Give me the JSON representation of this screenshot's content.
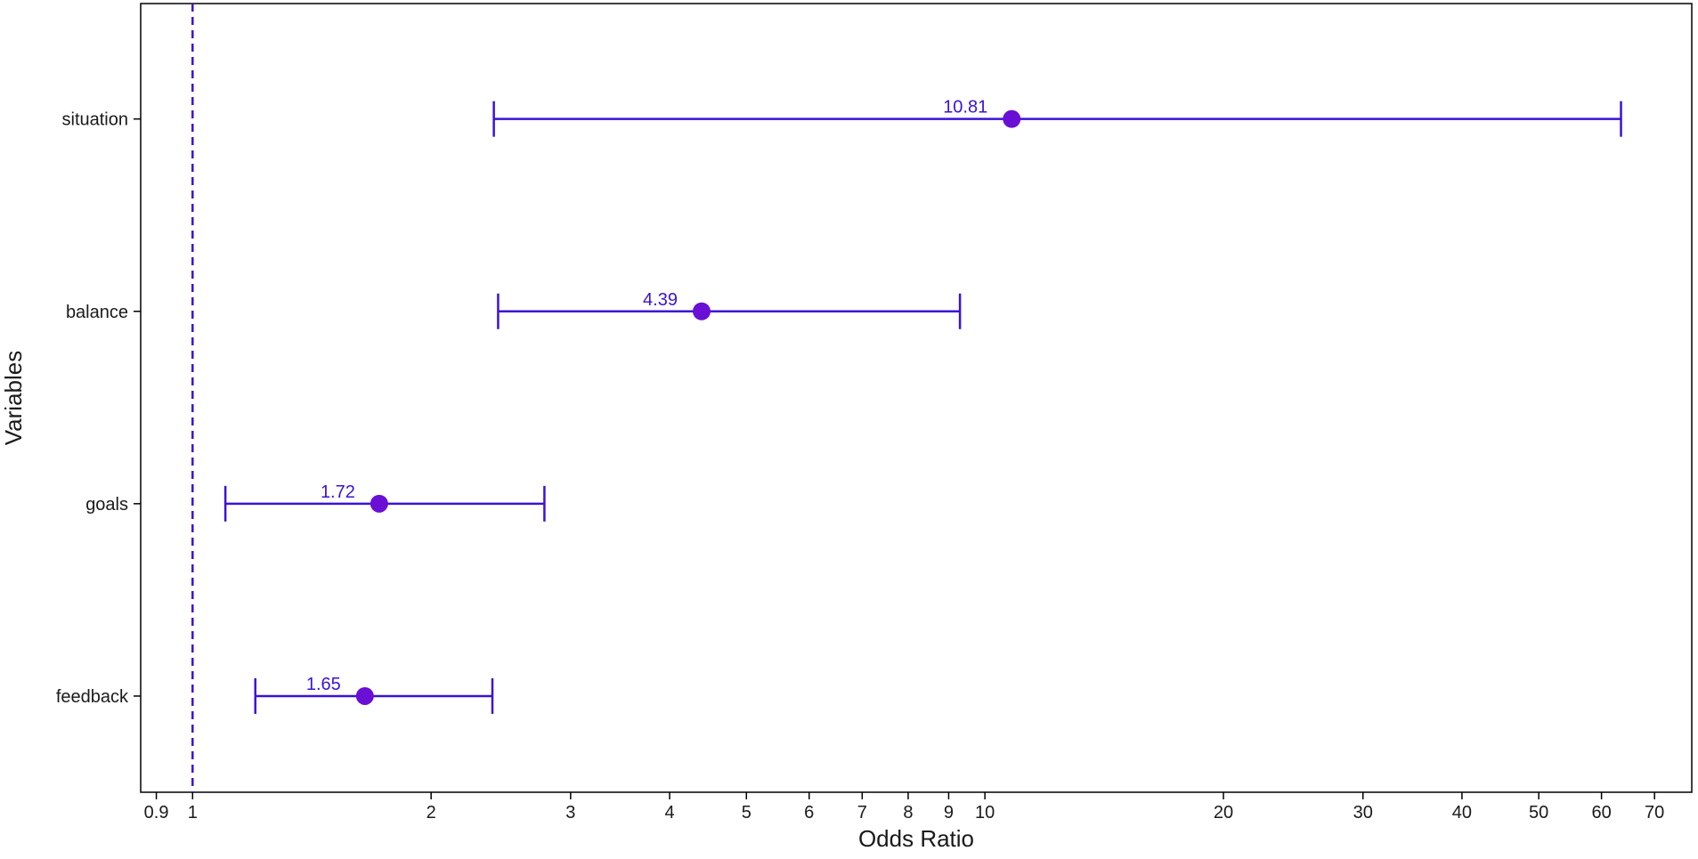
{
  "chart_data": {
    "type": "forest",
    "xlabel": "Odds Ratio",
    "ylabel": "Variables",
    "xscale": "log",
    "xlim": [
      0.86,
      78
    ],
    "x_ticks": [
      0.9,
      1,
      2,
      3,
      4,
      5,
      6,
      7,
      8,
      9,
      10,
      20,
      30,
      40,
      50,
      60,
      70
    ],
    "x_tick_labels": [
      "0.9",
      "1",
      "2",
      "3",
      "4",
      "5",
      "6",
      "7",
      "8",
      "9",
      "10",
      "20",
      "30",
      "40",
      "50",
      "60",
      "70"
    ],
    "reference_line": 1,
    "grid": false,
    "legend": "none",
    "color": "#3b12d6",
    "point_color": "#6a0fd6",
    "rows": [
      {
        "variable": "situation",
        "or": 10.81,
        "lower": 2.4,
        "upper": 63.5,
        "label": "10.81"
      },
      {
        "variable": "balance",
        "or": 4.39,
        "lower": 2.43,
        "upper": 9.3,
        "label": "4.39"
      },
      {
        "variable": "goals",
        "or": 1.72,
        "lower": 1.1,
        "upper": 2.78,
        "label": "1.72"
      },
      {
        "variable": "feedback",
        "or": 1.65,
        "lower": 1.2,
        "upper": 2.39,
        "label": "1.65"
      }
    ]
  }
}
